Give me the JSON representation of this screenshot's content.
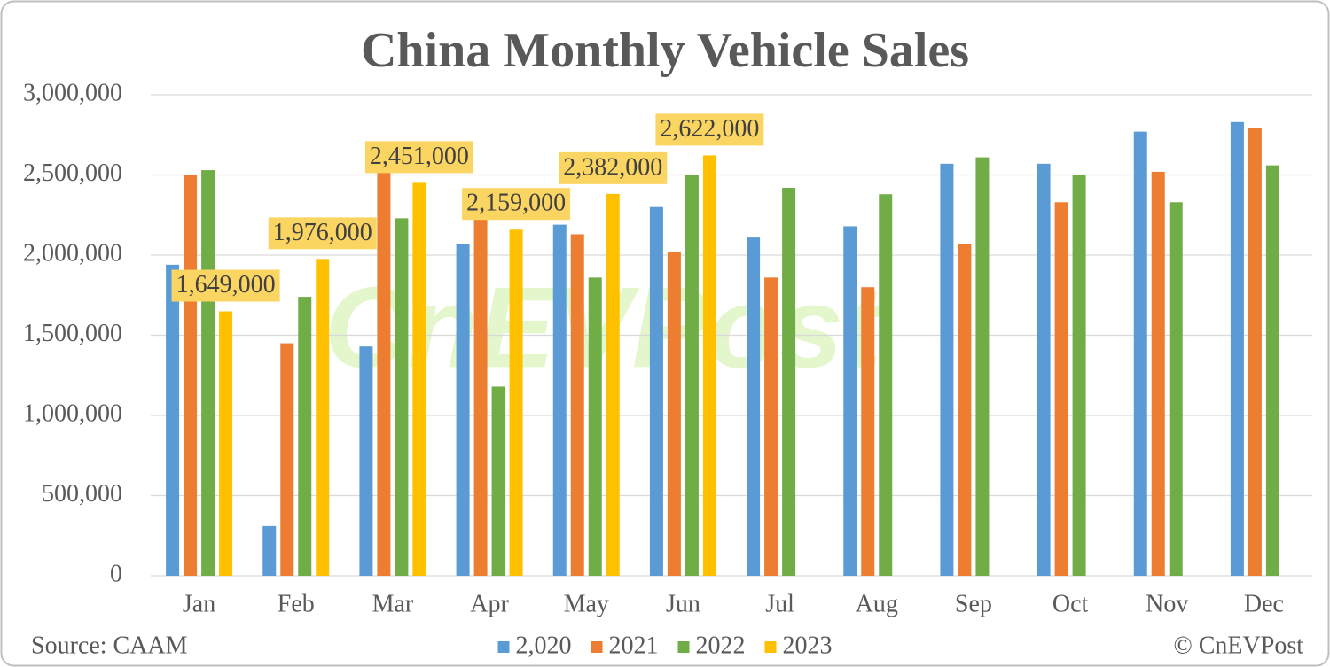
{
  "chart_data": {
    "type": "bar",
    "title": "China Monthly Vehicle Sales",
    "categories": [
      "Jan",
      "Feb",
      "Mar",
      "Apr",
      "May",
      "Jun",
      "Jul",
      "Aug",
      "Sep",
      "Oct",
      "Nov",
      "Dec"
    ],
    "series": [
      {
        "name": "2,020",
        "color": "#5b9bd5",
        "values": [
          1940000,
          310000,
          1430000,
          2070000,
          2190000,
          2300000,
          2110000,
          2180000,
          2570000,
          2570000,
          2770000,
          2830000
        ]
      },
      {
        "name": "2021",
        "color": "#ed7d31",
        "values": [
          2500000,
          1450000,
          2530000,
          2250000,
          2130000,
          2020000,
          1860000,
          1800000,
          2070000,
          2330000,
          2520000,
          2790000
        ]
      },
      {
        "name": "2022",
        "color": "#70ad47",
        "values": [
          2530000,
          1740000,
          2230000,
          1180000,
          1860000,
          2500000,
          2420000,
          2380000,
          2610000,
          2500000,
          2330000,
          2560000
        ]
      },
      {
        "name": "2023",
        "color": "#ffc000",
        "values": [
          1649000,
          1976000,
          2451000,
          2159000,
          2382000,
          2622000,
          null,
          null,
          null,
          null,
          null,
          null
        ],
        "value_labels": [
          "1,649,000",
          "1,976,000",
          "2,451,000",
          "2,159,000",
          "2,382,000",
          "2,622,000",
          null,
          null,
          null,
          null,
          null,
          null
        ]
      }
    ],
    "ylim": [
      0,
      3000000
    ],
    "yticks": [
      0,
      {
        "value": 500000,
        "label": "500,000"
      },
      {
        "value": 1000000,
        "label": "1,000,000"
      },
      {
        "value": 1500000,
        "label": "1,500,000"
      },
      {
        "value": 2000000,
        "label": "2,000,000"
      },
      {
        "value": 2500000,
        "label": "2,500,000"
      },
      {
        "value": 3000000,
        "label": "3,000,000"
      }
    ],
    "grid": true,
    "legend": "bottom",
    "source": "Source: CAAM",
    "copyright": "© CnEVPost",
    "watermark": "CnEVPost"
  }
}
